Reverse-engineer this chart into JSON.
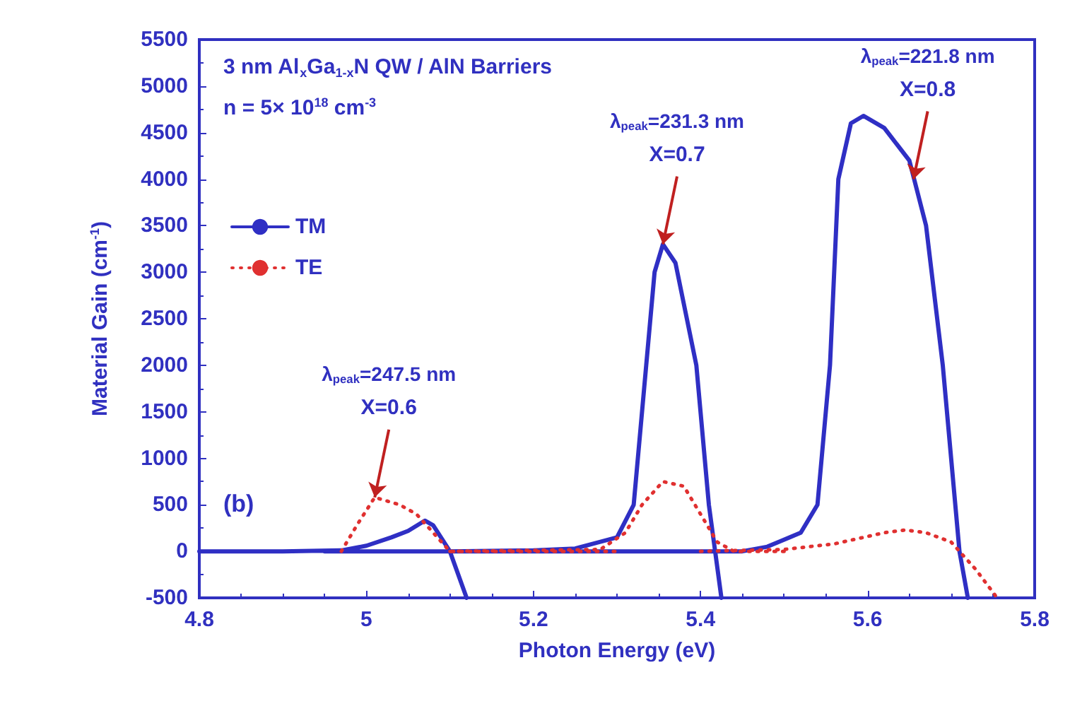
{
  "chart_data": {
    "type": "line",
    "xlabel": "Photon Energy (eV)",
    "ylabel": "Material Gain (cm$^{-1}$)",
    "xlim": [
      4.8,
      5.8
    ],
    "xticks": [
      4.8,
      5,
      5.2,
      5.4,
      5.6,
      5.8
    ],
    "ylim": [
      -500,
      5500
    ],
    "yticks": [
      -500,
      0,
      500,
      1000,
      1500,
      2000,
      2500,
      3000,
      3500,
      4000,
      4500,
      5000,
      5500
    ],
    "grid": false,
    "legend": "top left",
    "marker": "none",
    "series": [
      {
        "name": "TM",
        "color": "#2f2fc4",
        "line_style": "solid",
        "x": [
          4.8,
          4.9,
          4.97,
          5.0,
          5.03,
          5.05,
          5.07,
          5.08,
          5.1,
          5.12,
          null,
          4.95,
          5.1,
          5.2,
          5.25,
          5.3,
          5.32,
          5.335,
          5.345,
          5.355,
          5.37,
          5.395,
          5.41,
          5.425,
          null,
          5.1,
          5.45,
          5.48,
          5.52,
          5.54,
          5.555,
          5.565,
          5.58,
          5.595,
          5.62,
          5.65,
          5.67,
          5.69,
          5.71,
          5.72
        ],
        "values": [
          0,
          0,
          10,
          60,
          150,
          220,
          330,
          280,
          0,
          -500,
          null,
          0,
          0,
          10,
          30,
          150,
          500,
          2000,
          3000,
          3300,
          3100,
          2000,
          500,
          -500,
          null,
          0,
          0,
          50,
          200,
          500,
          2000,
          4000,
          4600,
          4680,
          4550,
          4200,
          3500,
          2000,
          0,
          -500
        ]
      },
      {
        "name": "TE",
        "color": "#e03030",
        "line_style": "dotted",
        "x": [
          4.97,
          4.99,
          5.01,
          5.04,
          5.06,
          5.08,
          5.1,
          5.2,
          5.3,
          null,
          5.1,
          5.28,
          5.31,
          5.33,
          5.355,
          5.38,
          5.4,
          5.42,
          5.44,
          5.5,
          null,
          5.4,
          5.5,
          5.56,
          5.62,
          5.645,
          5.67,
          5.7,
          5.73,
          5.755
        ],
        "values": [
          0,
          300,
          580,
          500,
          400,
          200,
          0,
          0,
          0,
          null,
          0,
          20,
          200,
          500,
          750,
          700,
          400,
          100,
          0,
          0,
          null,
          0,
          20,
          80,
          200,
          230,
          200,
          100,
          -200,
          -500
        ]
      }
    ],
    "annotations": [
      "3 nm Al$_{x}$Ga$_{1-x}$N QW / AlN Barriers",
      "n = 5× 10$^{18}$ cm$^{-3}$",
      "(b)",
      "λ$_{peak}$=247.5 nm",
      {
        "text": "X=0.6",
        "x": 5.01,
        "y": 580
      },
      "λ$_{peak}$=231.3 nm",
      {
        "text": "X=0.7",
        "x": 5.355,
        "y": 3300
      },
      "λ$_{peak}$=221.8 nm",
      {
        "text": "X=0.8",
        "x": 5.655,
        "y": 4000
      }
    ]
  }
}
